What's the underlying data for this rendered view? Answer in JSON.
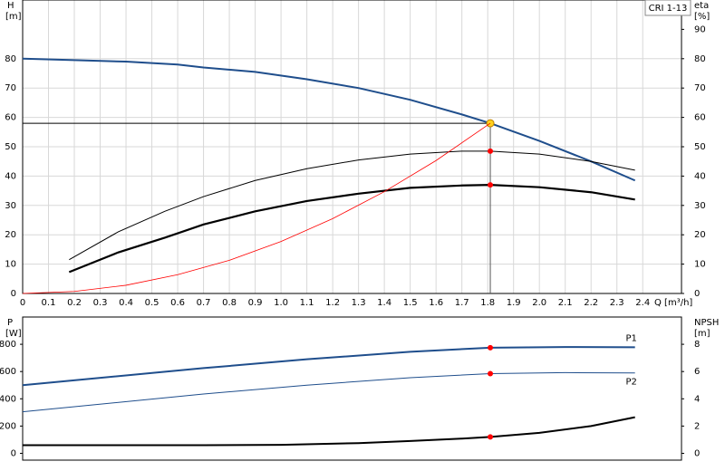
{
  "chart_data": [
    {
      "type": "line",
      "label": "CRI 1-13",
      "ylabel": "H",
      "yunit": "[m]",
      "y2label": "eta",
      "y2unit": "[%]",
      "xlabel": "Q [m³/h]",
      "xlim": [
        0,
        2.55
      ],
      "xticks": [
        0,
        0.1,
        0.2,
        0.3,
        0.4,
        0.5,
        0.6,
        0.7,
        0.8,
        0.9,
        {
          "value": 1,
          "label": "1.0"
        },
        1.1,
        1.2,
        1.3,
        1.4,
        1.5,
        1.6,
        1.7,
        1.8,
        1.9,
        {
          "value": 2,
          "label": "2.0"
        },
        2.1,
        2.2,
        2.3,
        2.4
      ],
      "ylim": [
        0,
        100
      ],
      "yticks": [
        0,
        10,
        20,
        30,
        40,
        50,
        60,
        70,
        80
      ],
      "y2lim": [
        0,
        100
      ],
      "y2ticks": [
        0,
        10,
        20,
        30,
        40,
        50,
        60,
        70,
        80,
        90
      ],
      "grid": true,
      "marker_x": 1.81,
      "duty_head": 58,
      "series": [
        {
          "color": "#1f4e8c",
          "width": 2,
          "marker_color": "#ffd21f",
          "x": [
            0,
            0.2,
            0.4,
            0.6,
            0.7,
            0.9,
            1.1,
            1.3,
            1.5,
            1.7,
            1.81,
            2.0,
            2.2,
            2.37
          ],
          "values": [
            80,
            79.5,
            79,
            78,
            77,
            75.5,
            73,
            70,
            66,
            61,
            58,
            52,
            45,
            38.5
          ]
        },
        {
          "color": "#000000",
          "width": 1,
          "marker_color": "#ff0000",
          "axis": "y2",
          "x": [
            0.18,
            0.37,
            0.55,
            0.7,
            0.9,
            1.1,
            1.3,
            1.5,
            1.7,
            1.81,
            2.0,
            2.2,
            2.37
          ],
          "values": [
            11.5,
            21,
            28,
            33,
            38.5,
            42.5,
            45.5,
            47.5,
            48.5,
            48.5,
            47.5,
            45,
            42
          ]
        },
        {
          "color": "#000000",
          "width": 2.2,
          "marker_color": "#ff0000",
          "axis": "y2",
          "x": [
            0.18,
            0.37,
            0.55,
            0.7,
            0.9,
            1.1,
            1.3,
            1.5,
            1.7,
            1.81,
            2.0,
            2.2,
            2.37
          ],
          "values": [
            7.3,
            14,
            19,
            23.5,
            28,
            31.5,
            34,
            36,
            36.8,
            37,
            36.2,
            34.5,
            32
          ]
        },
        {
          "color": "#ff0000",
          "width": 0.8,
          "x": [
            0,
            0.2,
            0.4,
            0.6,
            0.8,
            1.0,
            1.2,
            1.4,
            1.6,
            1.81
          ],
          "values": [
            0,
            0.7,
            2.8,
            6.4,
            11.3,
            17.7,
            25.5,
            34.7,
            45.3,
            58
          ]
        }
      ]
    },
    {
      "type": "line",
      "ylabel": "P",
      "yunit": "[W]",
      "y2label": "NPSH",
      "y2unit": "[m]",
      "xlim": [
        0,
        2.55
      ],
      "ylim": [
        -50,
        1000
      ],
      "yticks": [
        0,
        200,
        400,
        600,
        800
      ],
      "y2lim": [
        -0.5,
        10
      ],
      "y2ticks": [
        0,
        2,
        4,
        6,
        8
      ],
      "grid": false,
      "marker_x": 1.81,
      "series": [
        {
          "name": "P1",
          "color": "#1f4e8c",
          "width": 2,
          "marker_color": "#ff0000",
          "x": [
            0,
            0.7,
            1.1,
            1.5,
            1.81,
            2.1,
            2.37
          ],
          "values": [
            500,
            625,
            690,
            745,
            775,
            780,
            778
          ]
        },
        {
          "name": "P2",
          "color": "#1f4e8c",
          "width": 1,
          "marker_color": "#ff0000",
          "x": [
            0,
            0.7,
            1.1,
            1.5,
            1.81,
            2.1,
            2.37
          ],
          "values": [
            305,
            435,
            500,
            555,
            585,
            592,
            590
          ]
        },
        {
          "color": "#000000",
          "width": 2,
          "marker_color": "#ff0000",
          "axis": "y2",
          "x": [
            0,
            0.7,
            1.0,
            1.3,
            1.5,
            1.7,
            1.81,
            2.0,
            2.2,
            2.37
          ],
          "values": [
            0.6,
            0.6,
            0.62,
            0.75,
            0.9,
            1.08,
            1.2,
            1.5,
            2.0,
            2.65
          ]
        }
      ]
    }
  ]
}
